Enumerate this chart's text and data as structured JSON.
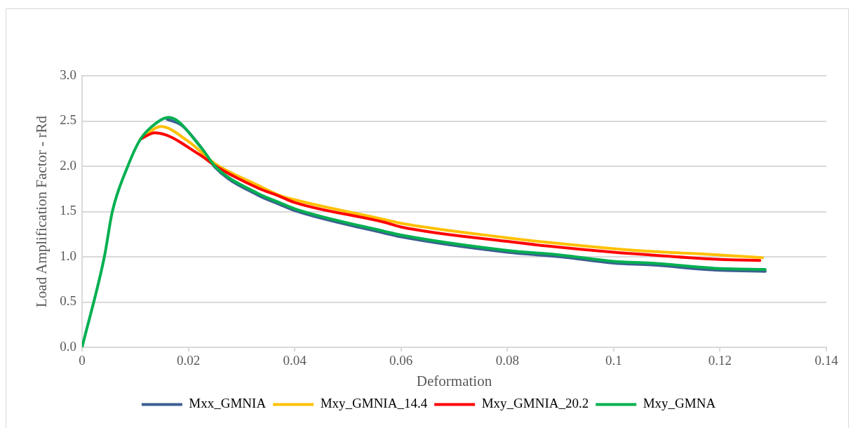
{
  "chart_data": {
    "type": "line",
    "xlabel": "Deformation",
    "ylabel": "Load Amplification Factor - rRd",
    "xlim": [
      0,
      0.14
    ],
    "xticks": [
      0,
      0.02,
      0.04,
      0.06,
      0.08,
      0.1,
      0.12,
      0.14
    ],
    "ylim": [
      0,
      3
    ],
    "yticks": [
      {
        "value": 0,
        "label": "0.0"
      },
      {
        "value": 0.5,
        "label": "0.5"
      },
      {
        "value": 1,
        "label": "1.0"
      },
      {
        "value": 1.5,
        "label": "1.5"
      },
      {
        "value": 2,
        "label": "2.0"
      },
      {
        "value": 2.5,
        "label": "2.5"
      },
      {
        "value": 3,
        "label": "3.0"
      }
    ],
    "grid": "y",
    "legend": "bottom",
    "marker": "none",
    "line_style": "solid",
    "series": [
      {
        "name": "Mxx_GMNIA",
        "color": "#3d5f91",
        "x": [
          0.016,
          0.0188,
          0.0225,
          0.025,
          0.0331,
          0.0371,
          0.04,
          0.057,
          0.06,
          0.08,
          0.09,
          0.1,
          0.107,
          0.12,
          0.1285
        ],
        "values": [
          2.52,
          2.45,
          2.2,
          1.99,
          1.68,
          1.58,
          1.51,
          1.26,
          1.22,
          1.05,
          1.0,
          0.93,
          0.91,
          0.85,
          0.84
        ]
      },
      {
        "name": "Mxy_GMNIA_14.4",
        "color": "#ffc000",
        "x": [
          0.011,
          0.0148,
          0.0199,
          0.025,
          0.0331,
          0.0371,
          0.04,
          0.057,
          0.06,
          0.08,
          0.0874,
          0.1,
          0.107,
          0.12,
          0.128
        ],
        "values": [
          2.3,
          2.44,
          2.28,
          2.03,
          1.79,
          1.68,
          1.63,
          1.41,
          1.37,
          1.21,
          1.16,
          1.09,
          1.06,
          1.02,
          0.99
        ]
      },
      {
        "name": "Mxy_GMNIA_20.2",
        "color": "#ff0000",
        "x": [
          0.011,
          0.0137,
          0.0221,
          0.0252,
          0.0331,
          0.0371,
          0.04,
          0.057,
          0.06,
          0.08,
          0.0874,
          0.1,
          0.107,
          0.12,
          0.1275
        ],
        "values": [
          2.3,
          2.37,
          2.13,
          2.0,
          1.76,
          1.67,
          1.6,
          1.38,
          1.33,
          1.17,
          1.12,
          1.05,
          1.02,
          0.97,
          0.96
        ]
      },
      {
        "name": "Mxy_GMNA",
        "color": "#00b050",
        "x": [
          0,
          0.0042,
          0.0057,
          0.0086,
          0.011,
          0.014,
          0.0163,
          0.0225,
          0.025,
          0.0331,
          0.0371,
          0.04,
          0.057,
          0.06,
          0.08,
          0.09,
          0.1,
          0.107,
          0.12,
          0.1285
        ],
        "values": [
          0,
          1.0,
          1.5,
          2.0,
          2.3,
          2.48,
          2.54,
          2.2,
          2.0,
          1.7,
          1.6,
          1.53,
          1.28,
          1.24,
          1.07,
          1.02,
          0.95,
          0.93,
          0.87,
          0.86
        ]
      }
    ]
  }
}
